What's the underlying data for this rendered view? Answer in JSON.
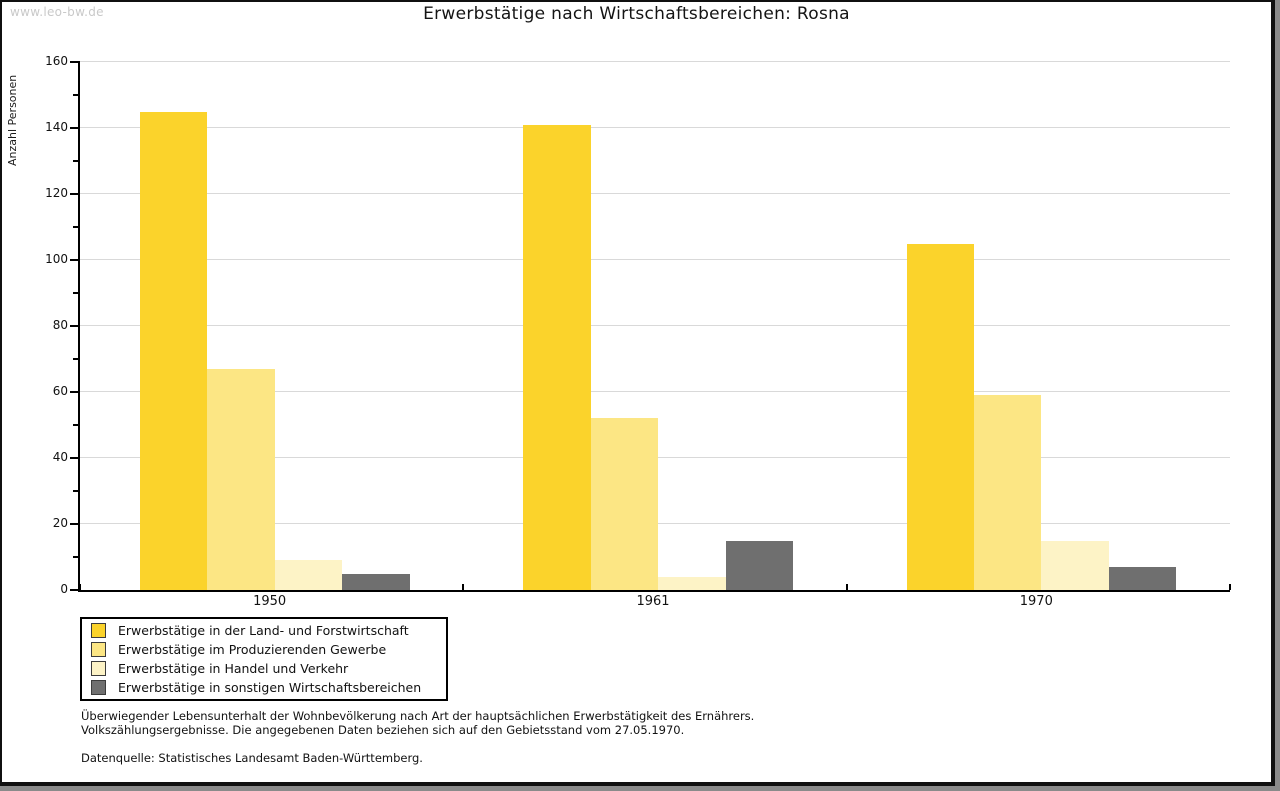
{
  "watermark": "www.leo-bw.de",
  "title": "Erwerbstätige nach Wirtschaftsbereichen: Rosna",
  "chart_data": {
    "type": "bar",
    "title": "Erwerbstätige nach Wirtschaftsbereichen: Rosna",
    "xlabel": "",
    "ylabel": "Anzahl Personen",
    "ylim": [
      0,
      160
    ],
    "ytick_step": 20,
    "minor_tick_step": 10,
    "grid": true,
    "legend_position": "bottom-left",
    "categories": [
      "1950",
      "1961",
      "1970"
    ],
    "series": [
      {
        "name": "Erwerbstätige in der Land- und Forstwirtschaft",
        "color": "#fbd32b",
        "values": [
          145,
          141,
          105
        ]
      },
      {
        "name": "Erwerbstätige im Produzierenden Gewerbe",
        "color": "#fce684",
        "values": [
          67,
          52,
          59
        ]
      },
      {
        "name": "Erwerbstätige in Handel und Verkehr",
        "color": "#fdf3c6",
        "values": [
          9,
          4,
          15
        ]
      },
      {
        "name": "Erwerbstätige in sonstigen Wirtschaftsbereichen",
        "color": "#6f6f6f",
        "values": [
          5,
          15,
          7
        ]
      }
    ]
  },
  "footnotes": {
    "line1": "Überwiegender Lebensunterhalt der Wohnbevölkerung nach Art der hauptsächlichen Erwerbstätigkeit des Ernährers.",
    "line2": "Volkszählungsergebnisse. Die angegebenen Daten beziehen sich auf den Gebietsstand vom 27.05.1970.",
    "source": "Datenquelle: Statistisches Landesamt Baden-Württemberg."
  },
  "colors": {
    "grid": "#d9d9d9",
    "axis": "#000000",
    "watermark": "#c9c9c9"
  }
}
